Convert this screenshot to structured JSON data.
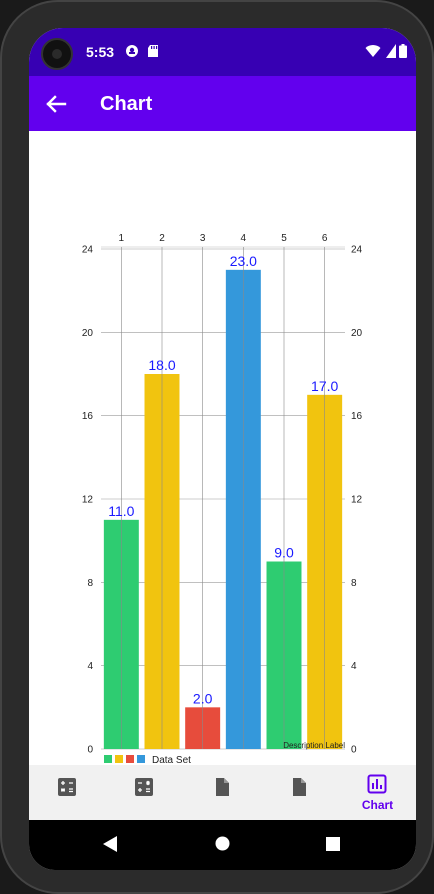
{
  "status": {
    "time": "5:53"
  },
  "appbar": {
    "title": "Chart"
  },
  "colors": {
    "statusbar": "#3700b3",
    "appbar": "#6200ee",
    "accent": "#6200ee",
    "value_label": "#1a1aff"
  },
  "chart_data": {
    "type": "bar",
    "categories": [
      "1",
      "2",
      "3",
      "4",
      "5",
      "6"
    ],
    "values": [
      11.0,
      18.0,
      2.0,
      23.0,
      9.0,
      17.0
    ],
    "value_labels": [
      "11.0",
      "18.0",
      "2.0",
      "23.0",
      "9.0",
      "17.0"
    ],
    "colors": [
      "#2ecc71",
      "#f1c40f",
      "#e74c3c",
      "#3498db",
      "#2ecc71",
      "#f1c40f"
    ],
    "series": [
      {
        "name": "Data Set",
        "values": [
          11.0,
          18.0,
          2.0,
          23.0,
          9.0,
          17.0
        ]
      }
    ],
    "legend": {
      "label": "Data Set",
      "colors": [
        "#2ecc71",
        "#f1c40f",
        "#e74c3c",
        "#3498db"
      ],
      "placement": "bottom-left"
    },
    "description": "Description Label",
    "ylim": [
      0,
      24
    ],
    "yticks": [
      "0",
      "4",
      "8",
      "12",
      "16",
      "20",
      "24"
    ],
    "xaxis_position": "top",
    "yaxis_left_and_right": true,
    "grid": true
  },
  "bottom_nav": {
    "items": [
      {
        "icon": "calculator-icon",
        "label": ""
      },
      {
        "icon": "calculator-icon",
        "label": ""
      },
      {
        "icon": "document-icon",
        "label": ""
      },
      {
        "icon": "document-icon",
        "label": ""
      },
      {
        "icon": "bar-chart-icon",
        "label": "Chart",
        "active": true
      }
    ]
  }
}
